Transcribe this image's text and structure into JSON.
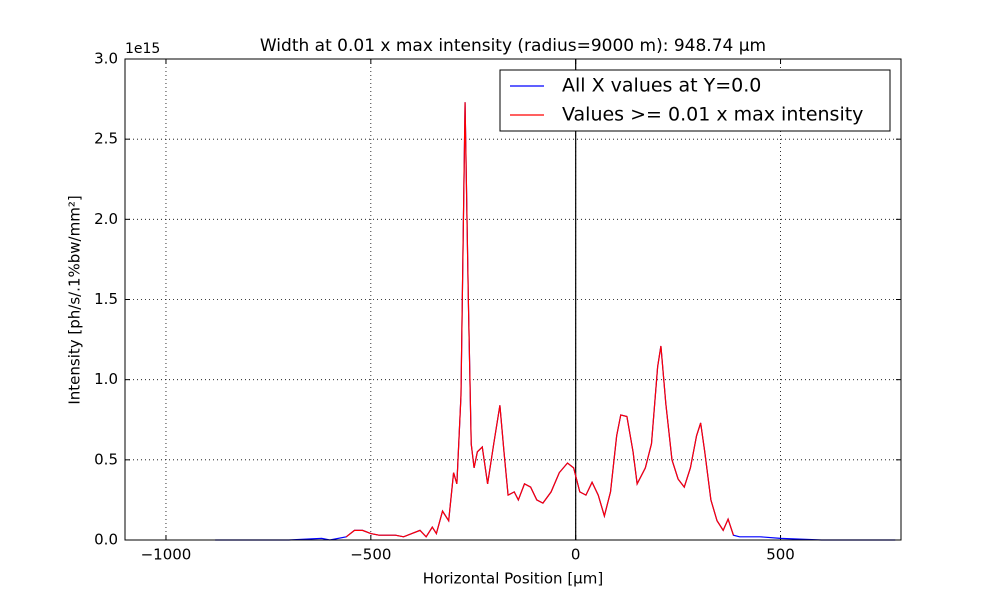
{
  "chart_data": {
    "type": "line",
    "title": "Width at 0.01 x max intensity (radius=9000 m): 948.74 µm",
    "x_label": "Horizontal Position [µm]",
    "y_label": "Intensity [ph/s/.1%bw/mm²]",
    "y_offset_label": "1e15",
    "x": [
      -880,
      -700,
      -620,
      -600,
      -560,
      -540,
      -520,
      -500,
      -480,
      -440,
      -420,
      -400,
      -380,
      -365,
      -350,
      -340,
      -325,
      -310,
      -298,
      -290,
      -280,
      -270,
      -262,
      -255,
      -248,
      -240,
      -228,
      -215,
      -200,
      -185,
      -175,
      -165,
      -150,
      -140,
      -125,
      -110,
      -95,
      -80,
      -60,
      -40,
      -20,
      -5,
      10,
      25,
      40,
      55,
      70,
      85,
      100,
      110,
      125,
      140,
      150,
      170,
      185,
      200,
      208,
      220,
      235,
      250,
      265,
      280,
      295,
      305,
      315,
      330,
      345,
      360,
      372,
      385,
      400,
      450,
      500,
      600,
      780
    ],
    "series": [
      {
        "name": "All X values at Y=0.0",
        "color": "#0000ff",
        "values": [
          0,
          0,
          0.01,
          0,
          0.02,
          0.06,
          0.06,
          0.04,
          0.03,
          0.03,
          0.02,
          0.04,
          0.06,
          0.02,
          0.08,
          0.04,
          0.18,
          0.12,
          0.42,
          0.35,
          0.9,
          2.73,
          1.5,
          0.6,
          0.45,
          0.55,
          0.58,
          0.35,
          0.6,
          0.84,
          0.55,
          0.28,
          0.3,
          0.25,
          0.35,
          0.33,
          0.25,
          0.23,
          0.3,
          0.42,
          0.48,
          0.45,
          0.3,
          0.28,
          0.36,
          0.28,
          0.15,
          0.3,
          0.65,
          0.78,
          0.77,
          0.55,
          0.35,
          0.45,
          0.6,
          1.08,
          1.21,
          0.85,
          0.5,
          0.38,
          0.33,
          0.45,
          0.65,
          0.73,
          0.55,
          0.25,
          0.12,
          0.06,
          0.13,
          0.03,
          0.02,
          0.02,
          0.01,
          0,
          0
        ]
      },
      {
        "name": "Values >= 0.01 x max intensity",
        "color": "#ff0000",
        "values": [
          null,
          null,
          null,
          null,
          0.02,
          0.06,
          0.06,
          0.04,
          0.03,
          0.03,
          0.02,
          0.04,
          0.06,
          0.02,
          0.08,
          0.04,
          0.18,
          0.12,
          0.42,
          0.35,
          0.9,
          2.73,
          1.5,
          0.6,
          0.45,
          0.55,
          0.58,
          0.35,
          0.6,
          0.84,
          0.55,
          0.28,
          0.3,
          0.25,
          0.35,
          0.33,
          0.25,
          0.23,
          0.3,
          0.42,
          0.48,
          0.45,
          0.3,
          0.28,
          0.36,
          0.28,
          0.15,
          0.3,
          0.65,
          0.78,
          0.77,
          0.55,
          0.35,
          0.45,
          0.6,
          1.08,
          1.21,
          0.85,
          0.5,
          0.38,
          0.33,
          0.45,
          0.65,
          0.73,
          0.55,
          0.25,
          0.12,
          0.06,
          0.13,
          0.03,
          null,
          null,
          null,
          null,
          null
        ]
      }
    ],
    "xlim": [
      -1100,
      794
    ],
    "ylim": [
      0,
      3
    ],
    "xticks": [
      {
        "value": -1000,
        "label": "−1000"
      },
      {
        "value": -500,
        "label": "−500"
      },
      0,
      500
    ],
    "yticks": [
      {
        "value": 0,
        "label": "0.0"
      },
      0.5,
      {
        "value": 1,
        "label": "1.0"
      },
      1.5,
      {
        "value": 2,
        "label": "2.0"
      },
      2.5,
      {
        "value": 3,
        "label": "3.0"
      }
    ],
    "vline_x": 0,
    "grid": true,
    "legend": "upper right"
  }
}
